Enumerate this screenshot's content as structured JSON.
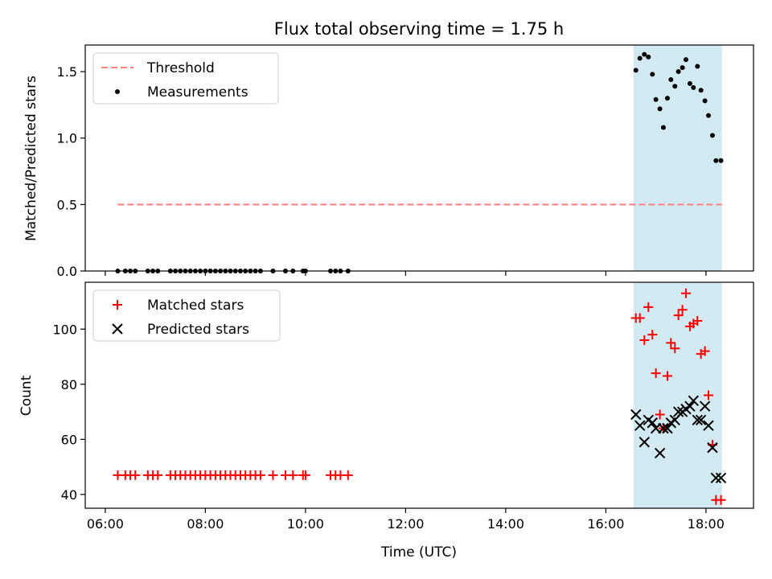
{
  "chart_data": {
    "title": "Flux total observing time = 1.75 h",
    "xlabel": "Time (UTC)",
    "x_unit": "hours UTC",
    "xlim": [
      5.6,
      18.95
    ],
    "xticks": [
      {
        "value": 6,
        "label": "06:00"
      },
      {
        "value": 8,
        "label": "08:00"
      },
      {
        "value": 10,
        "label": "10:00"
      },
      {
        "value": 12,
        "label": "12:00"
      },
      {
        "value": 14,
        "label": "14:00"
      },
      {
        "value": 16,
        "label": "16:00"
      },
      {
        "value": 18,
        "label": "18:00"
      }
    ],
    "shaded_span": {
      "x0": 16.55,
      "x1": 18.32,
      "color": "#add8e6"
    },
    "panels": [
      {
        "type": "scatter",
        "ylabel": "Matched/Predicted stars",
        "ylim": [
          0,
          1.7
        ],
        "yticks": [
          {
            "value": 0,
            "label": "0.0"
          },
          {
            "value": 0.5,
            "label": "0.5"
          },
          {
            "value": 1.0,
            "label": "1.0"
          },
          {
            "value": 1.5,
            "label": "1.5"
          }
        ],
        "legend": {
          "position": "top-left",
          "entries": [
            "Threshold",
            "Measurements"
          ]
        },
        "series": [
          {
            "name": "Threshold",
            "kind": "dashed-line",
            "color": "#ff7f7f",
            "x": [
              6.25,
              18.32
            ],
            "y": [
              0.5,
              0.5
            ]
          },
          {
            "name": "Measurements",
            "kind": "dot",
            "color": "#000000",
            "x": [
              6.25,
              6.4,
              6.5,
              6.6,
              6.85,
              6.95,
              7.05,
              7.3,
              7.4,
              7.5,
              7.6,
              7.7,
              7.8,
              7.9,
              8.0,
              8.1,
              8.2,
              8.3,
              8.4,
              8.5,
              8.6,
              8.7,
              8.8,
              8.9,
              9.0,
              9.1,
              9.35,
              9.6,
              9.75,
              9.95,
              10.0,
              10.5,
              10.6,
              10.7,
              10.85,
              16.6,
              16.68,
              16.77,
              16.85,
              16.93,
              17.0,
              17.08,
              17.15,
              17.23,
              17.3,
              17.38,
              17.45,
              17.53,
              17.6,
              17.68,
              17.75,
              17.83,
              17.9,
              17.98,
              18.05,
              18.13,
              18.2,
              18.3
            ],
            "y": [
              0,
              0,
              0,
              0,
              0,
              0,
              0,
              0,
              0,
              0,
              0,
              0,
              0,
              0,
              0,
              0,
              0,
              0,
              0,
              0,
              0,
              0,
              0,
              0,
              0,
              0,
              0,
              0,
              0,
              0,
              0,
              0,
              0,
              0,
              0,
              1.51,
              1.6,
              1.63,
              1.61,
              1.48,
              1.29,
              1.22,
              1.08,
              1.3,
              1.44,
              1.39,
              1.5,
              1.53,
              1.59,
              1.41,
              1.38,
              1.54,
              1.36,
              1.28,
              1.17,
              1.02,
              0.83,
              0.83
            ]
          }
        ]
      },
      {
        "type": "scatter",
        "ylabel": "Count",
        "ylim": [
          35,
          117
        ],
        "yticks": [
          {
            "value": 40,
            "label": "40"
          },
          {
            "value": 60,
            "label": "60"
          },
          {
            "value": 80,
            "label": "80"
          },
          {
            "value": 100,
            "label": "100"
          }
        ],
        "legend": {
          "position": "top-left",
          "entries": [
            "Matched stars",
            "Predicted stars"
          ]
        },
        "series": [
          {
            "name": "Matched stars",
            "kind": "plus",
            "color": "#ff0000",
            "x": [
              6.25,
              6.4,
              6.5,
              6.6,
              6.85,
              6.95,
              7.05,
              7.3,
              7.4,
              7.5,
              7.6,
              7.7,
              7.8,
              7.9,
              8.0,
              8.1,
              8.2,
              8.3,
              8.4,
              8.5,
              8.6,
              8.7,
              8.8,
              8.9,
              9.0,
              9.1,
              9.35,
              9.6,
              9.75,
              9.95,
              10.0,
              10.5,
              10.6,
              10.7,
              10.85,
              16.6,
              16.68,
              16.77,
              16.85,
              16.93,
              17.0,
              17.08,
              17.15,
              17.23,
              17.3,
              17.38,
              17.45,
              17.53,
              17.6,
              17.68,
              17.75,
              17.83,
              17.9,
              17.98,
              18.05,
              18.13,
              18.2,
              18.3
            ],
            "y": [
              47,
              47,
              47,
              47,
              47,
              47,
              47,
              47,
              47,
              47,
              47,
              47,
              47,
              47,
              47,
              47,
              47,
              47,
              47,
              47,
              47,
              47,
              47,
              47,
              47,
              47,
              47,
              47,
              47,
              47,
              47,
              47,
              47,
              47,
              47,
              104,
              104,
              96,
              108,
              98,
              84,
              69,
              64,
              83,
              95,
              93,
              105,
              107,
              113,
              101,
              102,
              103,
              91,
              92,
              76,
              58,
              38,
              38
            ]
          },
          {
            "name": "Predicted stars",
            "kind": "cross",
            "color": "#000000",
            "x": [
              16.6,
              16.68,
              16.77,
              16.85,
              16.93,
              17.0,
              17.08,
              17.15,
              17.23,
              17.3,
              17.38,
              17.45,
              17.53,
              17.6,
              17.68,
              17.75,
              17.83,
              17.9,
              17.98,
              18.05,
              18.13,
              18.2,
              18.3
            ],
            "y": [
              69,
              65,
              59,
              67,
              66,
              64,
              55,
              64,
              64,
              66,
              67,
              70,
              70,
              71,
              72,
              74,
              67,
              67,
              72,
              65,
              57,
              46,
              46
            ]
          }
        ]
      }
    ]
  }
}
